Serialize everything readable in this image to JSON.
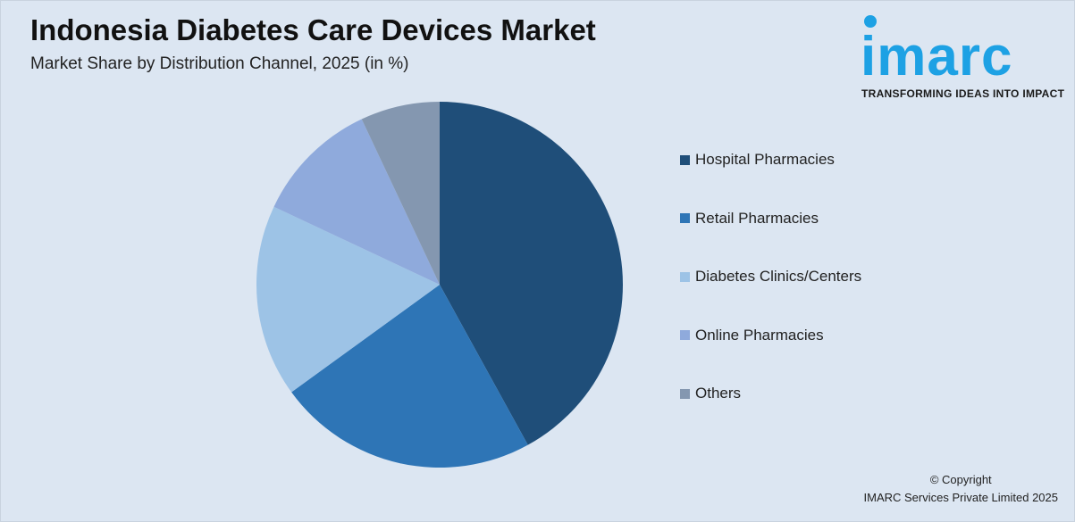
{
  "header": {
    "title": "Indonesia Diabetes Care Devices Market",
    "subtitle": "Market Share by Distribution Channel, 2025 (in %)"
  },
  "logo": {
    "word": "imarc",
    "tagline": "TRANSFORMING IDEAS INTO IMPACT",
    "color": "#1da1e4"
  },
  "chart_data": {
    "type": "pie",
    "categories": [
      "Hospital Pharmacies",
      "Retail Pharmacies",
      "Diabetes Clinics/Centers",
      "Online Pharmacies",
      "Others"
    ],
    "values": [
      42,
      23,
      17,
      11,
      7
    ],
    "colors": [
      "#1f4e79",
      "#2e75b6",
      "#9dc3e6",
      "#8faadc",
      "#8497b0"
    ],
    "legend_position": "right"
  },
  "footer": {
    "copyright_line1": "© Copyright",
    "copyright_line2": "IMARC Services Private Limited 2025"
  }
}
